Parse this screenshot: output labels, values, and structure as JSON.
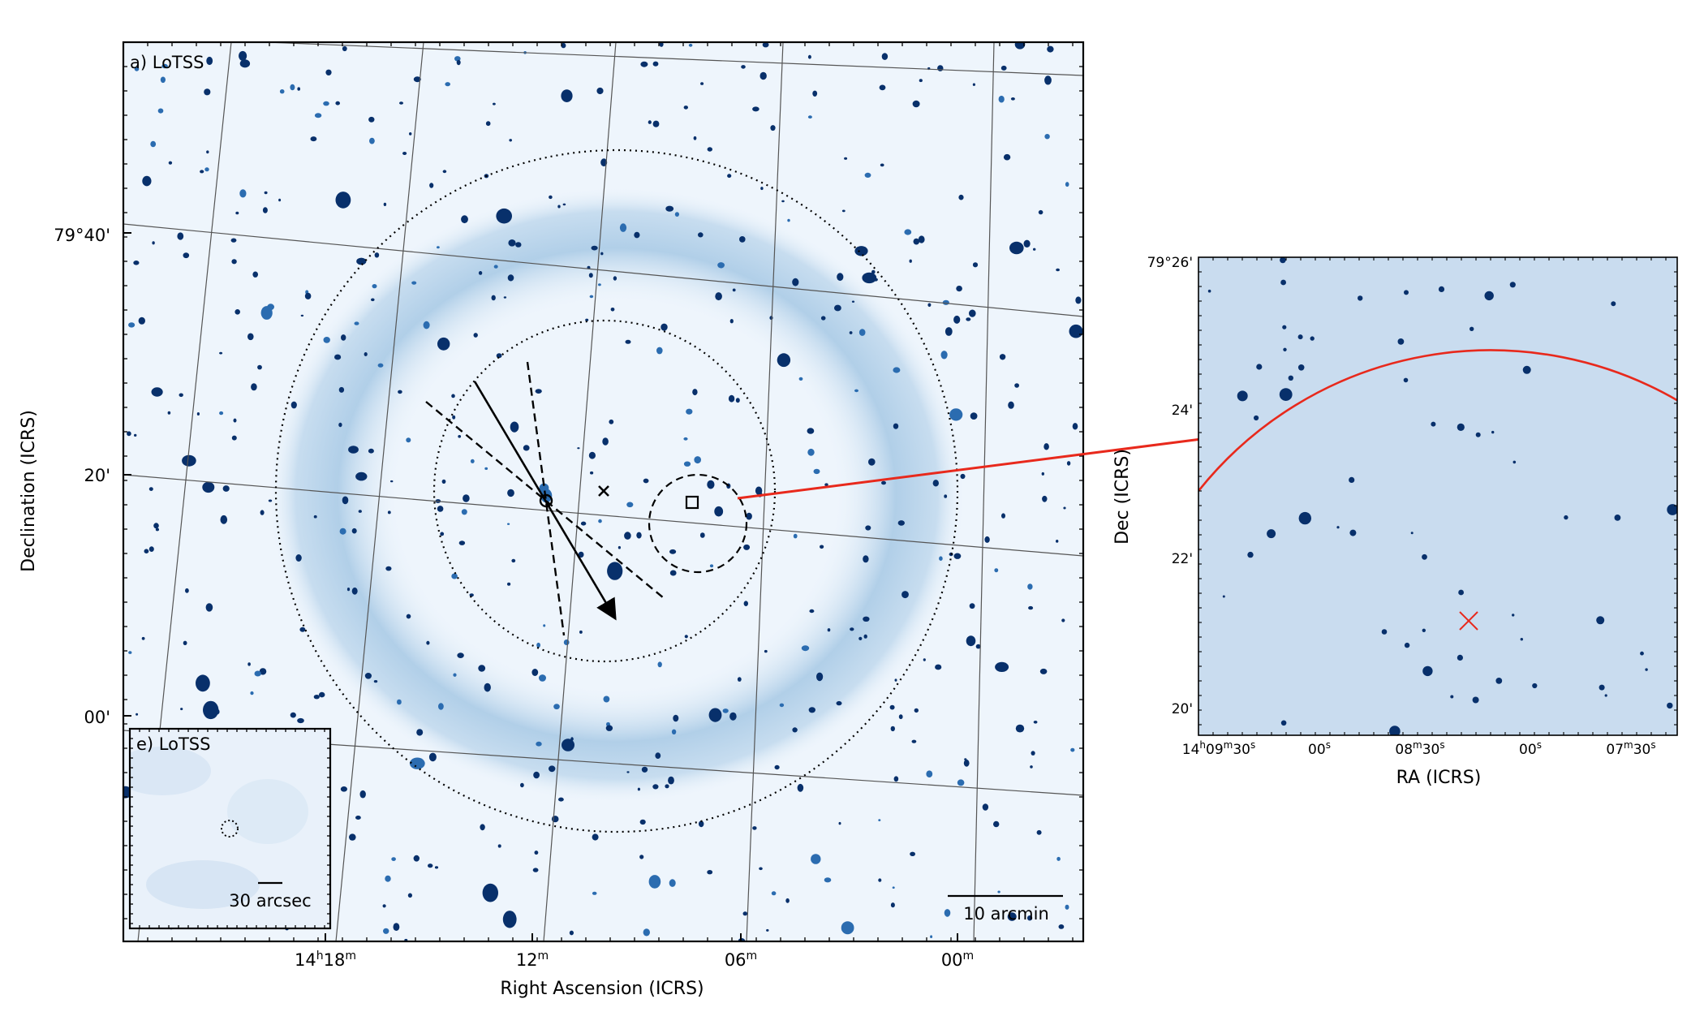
{
  "main_panel": {
    "panel_label": "a) LoTSS",
    "xlabel": "Right Ascension (ICRS)",
    "ylabel": "Declination (ICRS)",
    "ra_ticks": [
      {
        "h": "14",
        "hs": "h",
        "m": "18",
        "ms": "m"
      },
      {
        "h": "",
        "hs": "",
        "m": "12",
        "ms": "m"
      },
      {
        "h": "",
        "hs": "",
        "m": "06",
        "ms": "m"
      },
      {
        "h": "",
        "hs": "",
        "m": "00",
        "ms": "m"
      }
    ],
    "dec_ticks": [
      "79°40'",
      "20'",
      "00'"
    ],
    "scalebar_label": "10 arcmin"
  },
  "inset_panel": {
    "panel_label": "e) LoTSS",
    "scalebar_label": "30 arcsec"
  },
  "zoom_panel": {
    "xlabel": "RA (ICRS)",
    "ylabel": "Dec (ICRS)",
    "ra_ticks": [
      {
        "h": "14",
        "hs": "h",
        "m": "09",
        "ms": "m",
        "s": "30",
        "ss": "s"
      },
      {
        "h": "",
        "hs": "",
        "m": "",
        "ms": "",
        "s": "00",
        "ss": "s"
      },
      {
        "h": "",
        "hs": "",
        "m": "08",
        "ms": "m",
        "s": "30",
        "ss": "s"
      },
      {
        "h": "",
        "hs": "",
        "m": "",
        "ms": "",
        "s": "00",
        "ss": "s"
      },
      {
        "h": "",
        "hs": "",
        "m": "07",
        "ms": "m",
        "s": "30",
        "ss": "s"
      }
    ],
    "dec_ticks": [
      "79°26'",
      "24'",
      "22'",
      "20'"
    ]
  },
  "colors": {
    "map_background": "#eef5fc",
    "ring_emission": "#7fb0d8",
    "source": "#08306b",
    "zoom_background": "#c9dcef",
    "arrow_red": "#e8291c"
  }
}
